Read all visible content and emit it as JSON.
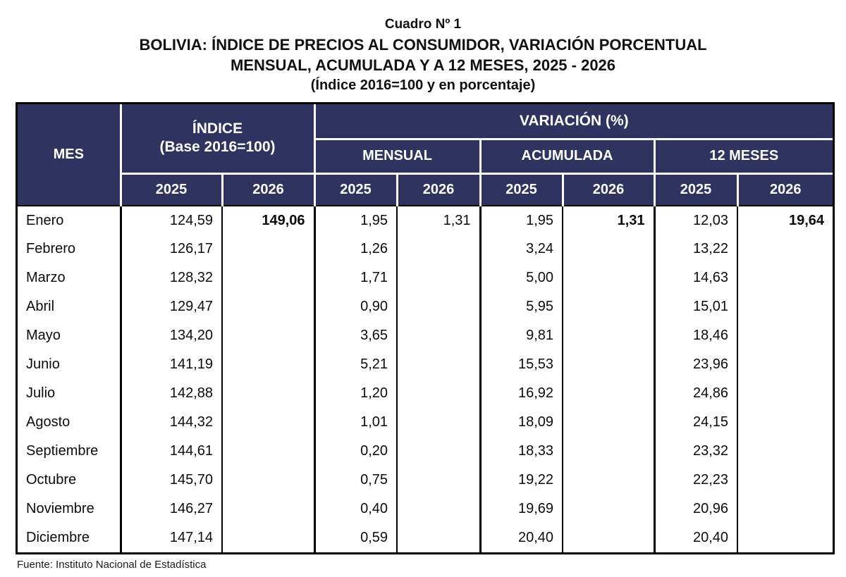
{
  "title": {
    "line1": "Cuadro Nº 1",
    "line2": "BOLIVIA: ÍNDICE DE PRECIOS AL CONSUMIDOR, VARIACIÓN PORCENTUAL",
    "line3": "MENSUAL, ACUMULADA Y A 12 MESES, 2025 - 2026",
    "line4": "(Índice 2016=100 y en porcentaje)"
  },
  "table": {
    "headers": {
      "mes": "MES",
      "indice_line1": "ÍNDICE",
      "indice_line2": "(Base 2016=100)",
      "variacion": "VARIACIÓN (%)",
      "mensual": "MENSUAL",
      "acumulada": "ACUMULADA",
      "doce_meses": "12 MESES",
      "year_2025": "2025",
      "year_2026": "2026"
    },
    "rows": [
      {
        "mes": "Enero",
        "i25": "124,59",
        "i26": "149,06",
        "m25": "1,95",
        "m26": "1,31",
        "a25": "1,95",
        "a26": "1,31",
        "t25": "12,03",
        "t26": "19,64"
      },
      {
        "mes": "Febrero",
        "i25": "126,17",
        "i26": "",
        "m25": "1,26",
        "m26": "",
        "a25": "3,24",
        "a26": "",
        "t25": "13,22",
        "t26": ""
      },
      {
        "mes": "Marzo",
        "i25": "128,32",
        "i26": "",
        "m25": "1,71",
        "m26": "",
        "a25": "5,00",
        "a26": "",
        "t25": "14,63",
        "t26": ""
      },
      {
        "mes": "Abril",
        "i25": "129,47",
        "i26": "",
        "m25": "0,90",
        "m26": "",
        "a25": "5,95",
        "a26": "",
        "t25": "15,01",
        "t26": ""
      },
      {
        "mes": "Mayo",
        "i25": "134,20",
        "i26": "",
        "m25": "3,65",
        "m26": "",
        "a25": "9,81",
        "a26": "",
        "t25": "18,46",
        "t26": ""
      },
      {
        "mes": "Junio",
        "i25": "141,19",
        "i26": "",
        "m25": "5,21",
        "m26": "",
        "a25": "15,53",
        "a26": "",
        "t25": "23,96",
        "t26": ""
      },
      {
        "mes": "Julio",
        "i25": "142,88",
        "i26": "",
        "m25": "1,20",
        "m26": "",
        "a25": "16,92",
        "a26": "",
        "t25": "24,86",
        "t26": ""
      },
      {
        "mes": "Agosto",
        "i25": "144,32",
        "i26": "",
        "m25": "1,01",
        "m26": "",
        "a25": "18,09",
        "a26": "",
        "t25": "24,15",
        "t26": ""
      },
      {
        "mes": "Septiembre",
        "i25": "144,61",
        "i26": "",
        "m25": "0,20",
        "m26": "",
        "a25": "18,33",
        "a26": "",
        "t25": "23,32",
        "t26": ""
      },
      {
        "mes": "Octubre",
        "i25": "145,70",
        "i26": "",
        "m25": "0,75",
        "m26": "",
        "a25": "19,22",
        "a26": "",
        "t25": "22,23",
        "t26": ""
      },
      {
        "mes": "Noviembre",
        "i25": "146,27",
        "i26": "",
        "m25": "0,40",
        "m26": "",
        "a25": "19,69",
        "a26": "",
        "t25": "20,96",
        "t26": ""
      },
      {
        "mes": "Diciembre",
        "i25": "147,14",
        "i26": "",
        "m25": "0,59",
        "m26": "",
        "a25": "20,40",
        "a26": "",
        "t25": "20,40",
        "t26": ""
      }
    ]
  },
  "footer": {
    "source": "Fuente: Instituto Nacional de Estadística"
  },
  "colors": {
    "header_bg": "#2e3360",
    "header_text": "#ffffff",
    "border": "#000000"
  }
}
